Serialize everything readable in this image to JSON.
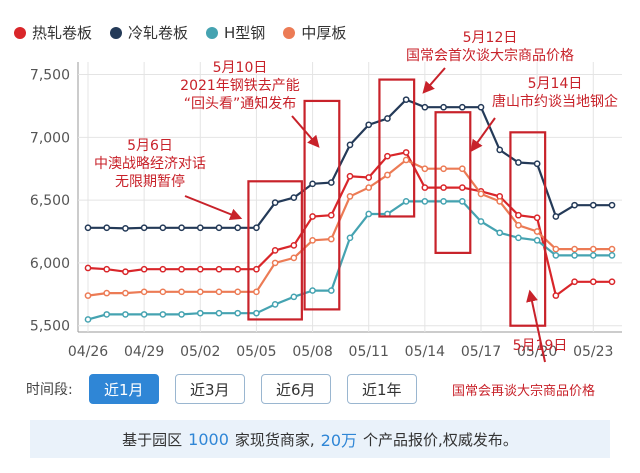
{
  "legend": [
    {
      "label": "热轧卷板",
      "color": "#d9262a"
    },
    {
      "label": "冷轧卷板",
      "color": "#243a58"
    },
    {
      "label": "H型钢",
      "color": "#45a3b1"
    },
    {
      "label": "中厚板",
      "color": "#ec7b55"
    }
  ],
  "chart_data": {
    "type": "line",
    "x": [
      "04/26",
      "04/27",
      "04/28",
      "04/29",
      "04/30",
      "05/01",
      "05/02",
      "05/03",
      "05/04",
      "05/05",
      "05/06",
      "05/07",
      "05/08",
      "05/09",
      "05/10",
      "05/11",
      "05/12",
      "05/13",
      "05/14",
      "05/15",
      "05/16",
      "05/17",
      "05/18",
      "05/19",
      "05/20",
      "05/21",
      "05/22",
      "05/23",
      "05/24"
    ],
    "x_ticks": [
      "04/26",
      "04/29",
      "05/02",
      "05/05",
      "05/08",
      "05/11",
      "05/14",
      "05/17",
      "05/20",
      "05/23"
    ],
    "ylim": [
      5450,
      7600
    ],
    "y_ticks": [
      "5,500",
      "6,000",
      "6,500",
      "7,000",
      "7,500"
    ],
    "y_tick_values": [
      5500,
      6000,
      6500,
      7000,
      7500
    ],
    "grid": true,
    "series": [
      {
        "name": "冷轧卷板",
        "color": "#243a58",
        "values": [
          6280,
          6280,
          6275,
          6280,
          6280,
          6280,
          6280,
          6280,
          6280,
          6280,
          6480,
          6520,
          6630,
          6640,
          6940,
          7100,
          7150,
          7300,
          7240,
          7240,
          7240,
          7240,
          6900,
          6800,
          6790,
          6370,
          6460,
          6460,
          6460
        ]
      },
      {
        "name": "热轧卷板",
        "color": "#d9262a",
        "values": [
          5960,
          5950,
          5930,
          5950,
          5950,
          5950,
          5950,
          5950,
          5950,
          5950,
          6100,
          6140,
          6370,
          6380,
          6690,
          6680,
          6850,
          6880,
          6600,
          6600,
          6600,
          6570,
          6530,
          6380,
          6360,
          5740,
          5850,
          5850,
          5850
        ]
      },
      {
        "name": "中厚板",
        "color": "#ec7b55",
        "values": [
          5740,
          5760,
          5760,
          5770,
          5770,
          5770,
          5770,
          5770,
          5770,
          5770,
          6000,
          6040,
          6180,
          6190,
          6530,
          6600,
          6700,
          6820,
          6750,
          6750,
          6750,
          6550,
          6490,
          6300,
          6250,
          6110,
          6110,
          6110,
          6110
        ]
      },
      {
        "name": "H型钢",
        "color": "#45a3b1",
        "values": [
          5550,
          5590,
          5590,
          5590,
          5590,
          5590,
          5600,
          5600,
          5600,
          5600,
          5670,
          5730,
          5780,
          5780,
          6200,
          6390,
          6390,
          6490,
          6490,
          6490,
          6490,
          6330,
          6240,
          6200,
          6180,
          6060,
          6060,
          6060,
          6060
        ]
      }
    ],
    "annotations": [
      {
        "lines": [
          "5月6日",
          "中澳战略经济对话",
          "无限期暂停"
        ],
        "color": "#c8222a"
      },
      {
        "lines": [
          "5月10日",
          "2021年钢铁去产能",
          "“回头看”通知发布"
        ],
        "color": "#c8222a"
      },
      {
        "lines": [
          "5月12日",
          "国常会首次谈大宗商品价格"
        ],
        "color": "#c8222a"
      },
      {
        "lines": [
          "5月14日",
          "唐山市约谈当地钢企"
        ],
        "color": "#c8222a"
      },
      {
        "lines": [
          "5月19日",
          "国常会再谈大宗商品价格"
        ],
        "color": "#c8222a"
      }
    ],
    "highlight_boxes": [
      {
        "x_from": "05/05",
        "x_to": "05/07",
        "y_from": 5550,
        "y_to": 6650
      },
      {
        "x_from": "05/08",
        "x_to": "05/09",
        "y_from": 5630,
        "y_to": 7290
      },
      {
        "x_from": "05/12",
        "x_to": "05/13",
        "y_from": 6370,
        "y_to": 7460
      },
      {
        "x_from": "05/15",
        "x_to": "05/16",
        "y_from": 6080,
        "y_to": 7200
      },
      {
        "x_from": "05/19",
        "x_to": "05/20",
        "y_from": 5500,
        "y_to": 7040
      }
    ]
  },
  "period": {
    "label": "时间段:",
    "options": [
      "近1月",
      "近3月",
      "近6月",
      "近1年"
    ],
    "active": "近1月"
  },
  "footer": {
    "p1": "基于园区",
    "n1": "1000",
    "p2": "家现货商家,",
    "n2": "20万",
    "p3": "个产品报价,权威发布。"
  }
}
